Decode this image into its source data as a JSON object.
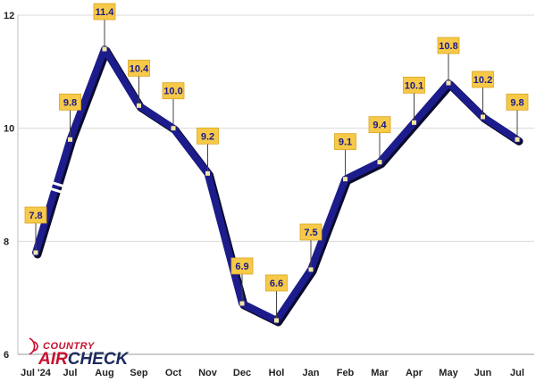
{
  "chart_data": {
    "type": "line",
    "categories": [
      "Jul '24",
      "Jul",
      "Aug",
      "Sep",
      "Oct",
      "Nov",
      "Dec",
      "Hol",
      "Jan",
      "Feb",
      "Mar",
      "Apr",
      "May",
      "Jun",
      "Jul"
    ],
    "values": [
      7.8,
      9.8,
      11.4,
      10.4,
      10.0,
      9.2,
      6.9,
      6.6,
      7.5,
      9.1,
      9.4,
      10.1,
      10.8,
      10.2,
      9.8
    ],
    "data_labels": [
      "7.8",
      "9.8",
      "11.4",
      "10.4",
      "10.0",
      "9.2",
      "6.9",
      "6.6",
      "7.5",
      "9.1",
      "9.4",
      "10.1",
      "10.8",
      "10.2",
      "9.8"
    ],
    "ylim": [
      6,
      12
    ],
    "yticks": [
      6,
      8,
      10,
      12
    ],
    "ytick_labels": [
      "6",
      "8",
      "10",
      "12"
    ],
    "axis_break_after_index": 0,
    "grid": true,
    "title": "",
    "xlabel": "",
    "ylabel": ""
  },
  "logo": {
    "line1": "COUNTRY",
    "part_red": "AIR",
    "part_navy": "CHECK"
  },
  "colors": {
    "line": "#1c1c8c",
    "line_shadow": "#0b0b2e",
    "label_bg": "#f7c948",
    "label_text": "#1a1a8c",
    "marker": "#f2e6a0",
    "grid": "#d9d9d9"
  }
}
